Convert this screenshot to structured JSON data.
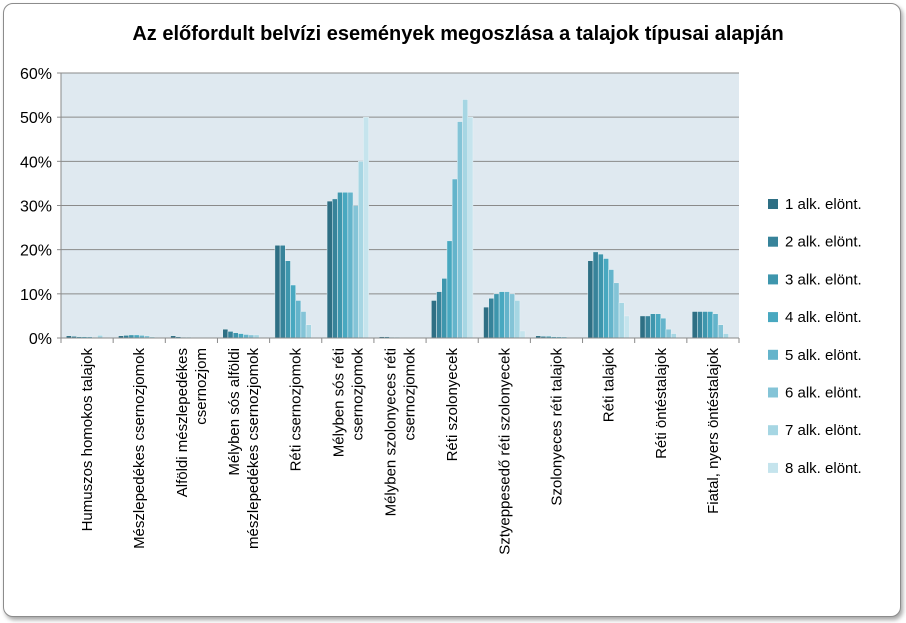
{
  "chart_data": {
    "type": "bar",
    "title": "Az előfordult belvízi események megoszlása a talajok típusai alapján",
    "xlabel": "",
    "ylabel": "",
    "ylim": [
      0,
      0.6
    ],
    "y_ticks": [
      "0%",
      "10%",
      "20%",
      "30%",
      "40%",
      "50%",
      "60%"
    ],
    "grid": true,
    "legend_position": "right",
    "categories": [
      [
        "Humuszos homokos talajok"
      ],
      [
        "Mészlepedékes csernozjomok"
      ],
      [
        "Alföldi mészlepedékes",
        "csernozjom"
      ],
      [
        "Mélyben sós alföldi",
        "mészlepedékes csernozjomok"
      ],
      [
        "Réti csernozjomok"
      ],
      [
        "Mélyben sós réti",
        "csernozjomok"
      ],
      [
        "Mélyben szolonyeces réti",
        "csernozjomok"
      ],
      [
        "Réti szolonyecek"
      ],
      [
        "Sztyeppesedő réti szolonyecek"
      ],
      [
        "Szolonyeces réti talajok"
      ],
      [
        "Réti talajok"
      ],
      [
        "Réti öntéstalajok"
      ],
      [
        "Fiatal, nyers öntéstalajok"
      ]
    ],
    "series": [
      {
        "name": "1 alk. elönt.",
        "color": "#2e6f84",
        "values": [
          0.005,
          0.005,
          0.005,
          0.02,
          0.21,
          0.31,
          0.003,
          0.085,
          0.07,
          0.005,
          0.175,
          0.05,
          0.06
        ]
      },
      {
        "name": "2 alk. elönt.",
        "color": "#37839a",
        "values": [
          0.004,
          0.006,
          0.003,
          0.015,
          0.21,
          0.315,
          0.003,
          0.105,
          0.09,
          0.004,
          0.195,
          0.05,
          0.06
        ]
      },
      {
        "name": "3 alk. elönt.",
        "color": "#3e96ad",
        "values": [
          0.003,
          0.007,
          0.002,
          0.012,
          0.175,
          0.33,
          0.002,
          0.135,
          0.1,
          0.004,
          0.19,
          0.055,
          0.06
        ]
      },
      {
        "name": "4 alk. elönt.",
        "color": "#48a8c0",
        "values": [
          0.003,
          0.007,
          0.002,
          0.01,
          0.12,
          0.33,
          0.002,
          0.22,
          0.105,
          0.003,
          0.18,
          0.055,
          0.06
        ]
      },
      {
        "name": "5 alk. elönt.",
        "color": "#64b4cb",
        "values": [
          0.003,
          0.006,
          0.0,
          0.008,
          0.085,
          0.33,
          0.0,
          0.36,
          0.105,
          0.003,
          0.155,
          0.045,
          0.055
        ]
      },
      {
        "name": "6 alk. elönt.",
        "color": "#84c4d7",
        "values": [
          0.002,
          0.005,
          0.0,
          0.007,
          0.06,
          0.3,
          0.0,
          0.49,
          0.1,
          0.003,
          0.125,
          0.02,
          0.03
        ]
      },
      {
        "name": "7 alk. elönt.",
        "color": "#a6d6e3",
        "values": [
          0.006,
          0.003,
          0.0,
          0.007,
          0.03,
          0.4,
          0.0,
          0.54,
          0.085,
          0.0,
          0.08,
          0.01,
          0.01
        ]
      },
      {
        "name": "8 alk. elönt.",
        "color": "#c5e4ed",
        "values": [
          0.0,
          0.0,
          0.0,
          0.0,
          0.0,
          0.5,
          0.0,
          0.5,
          0.016,
          0.0,
          0.05,
          0.0,
          0.0
        ]
      }
    ]
  }
}
